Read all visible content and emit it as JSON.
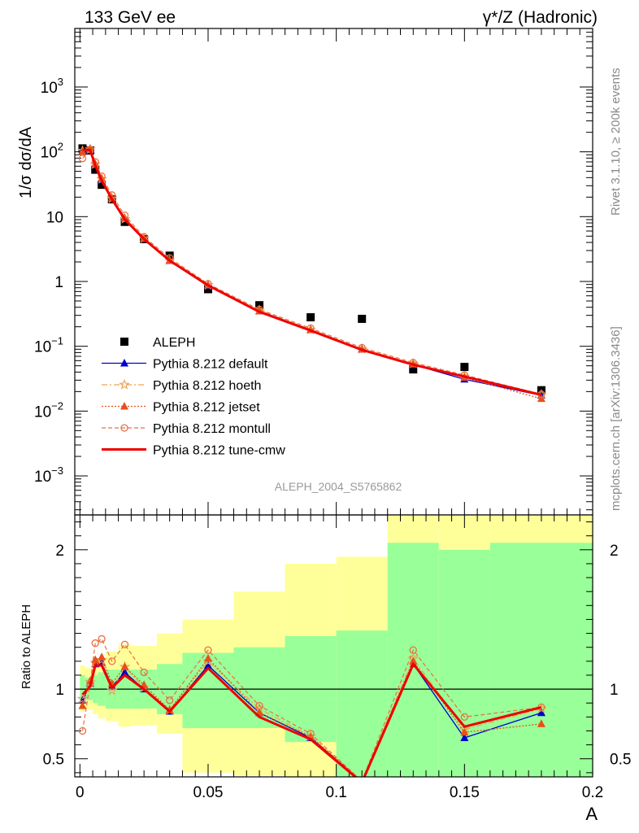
{
  "header": {
    "left": "133 GeV ee",
    "right": "γ*/Z (Hadronic)"
  },
  "side_text": {
    "top": "Rivet 3.1.10, ≥ 200k events",
    "bottom": "mcplots.cern.ch [arXiv:1306.3436]"
  },
  "reference": "ALEPH_2004_S5765862",
  "chart_data": [
    {
      "type": "line",
      "panel": "main",
      "ylabel": "1/σ  dσ/dA",
      "xlim": [
        -0.002,
        0.2
      ],
      "ylim": [
        0.00025,
        8000
      ],
      "yscale": "log",
      "x_ticks": [
        0,
        0.05,
        0.1,
        0.15,
        0.2
      ],
      "y_ticks": [
        {
          "v": 0.001,
          "label": "10^-3"
        },
        {
          "v": 0.01,
          "label": "10^-2"
        },
        {
          "v": 0.1,
          "label": "10^-1"
        },
        {
          "v": 1,
          "label": "1"
        },
        {
          "v": 10,
          "label": "10"
        },
        {
          "v": 100,
          "label": "10^2"
        },
        {
          "v": 1000,
          "label": "10^3"
        }
      ],
      "legend_position": "bottom-left",
      "x": [
        0.001,
        0.004,
        0.006,
        0.0085,
        0.0125,
        0.0175,
        0.025,
        0.035,
        0.05,
        0.07,
        0.09,
        0.11,
        0.13,
        0.15,
        0.18
      ],
      "series": [
        {
          "name": "ALEPH",
          "style": "data",
          "color": "#000000",
          "values": [
            113,
            105,
            53,
            31,
            18.5,
            8.3,
            4.5,
            2.5,
            0.76,
            0.43,
            0.28,
            0.265,
            0.044,
            0.048,
            0.021
          ]
        },
        {
          "name": "Pythia 8.212 default",
          "style": "default",
          "color": "#0000cc",
          "values": [
            103,
            108,
            63,
            37,
            19.2,
            9.3,
            4.55,
            2.1,
            0.86,
            0.35,
            0.18,
            0.09,
            0.052,
            0.031,
            0.0175
          ]
        },
        {
          "name": "Pythia 8.212 hoeth",
          "style": "hoeth",
          "color": "#f0a050",
          "values": [
            104,
            110,
            64,
            38,
            19.0,
            9.2,
            4.6,
            2.1,
            0.88,
            0.36,
            0.18,
            0.091,
            0.054,
            0.034,
            0.018
          ]
        },
        {
          "name": "Pythia 8.212 jetset",
          "style": "jetset",
          "color": "#e8501a",
          "values": [
            99,
            111,
            65,
            39,
            19.5,
            9.6,
            4.6,
            2.12,
            0.88,
            0.35,
            0.18,
            0.09,
            0.053,
            0.033,
            0.0155
          ]
        },
        {
          "name": "Pythia 8.212 montull",
          "style": "montull",
          "color": "#e87040",
          "values": [
            79,
            109,
            70,
            42,
            21.5,
            10.5,
            4.9,
            2.3,
            0.92,
            0.37,
            0.19,
            0.095,
            0.056,
            0.036,
            0.0182
          ]
        },
        {
          "name": "Pythia 8.212 tune-cmw",
          "style": "cmw",
          "color": "#ee0000",
          "values": [
            108,
            106,
            62,
            36,
            18.6,
            9.1,
            4.5,
            2.1,
            0.87,
            0.34,
            0.175,
            0.088,
            0.052,
            0.034,
            0.0178
          ]
        }
      ]
    },
    {
      "type": "line",
      "panel": "ratio",
      "ylabel": "Ratio to ALEPH",
      "xlabel": "A",
      "xlim": [
        -0.002,
        0.2
      ],
      "ylim": [
        0.37,
        2.25
      ],
      "y_ticks": [
        0.5,
        1,
        2
      ],
      "x_ticks": [
        0,
        0.05,
        0.1,
        0.15,
        0.2
      ],
      "bands": [
        {
          "x0": 0.0,
          "x1": 0.002,
          "green": [
            0.9,
            1.1
          ],
          "yellow": [
            0.84,
            1.17
          ]
        },
        {
          "x0": 0.002,
          "x1": 0.005,
          "green": [
            0.92,
            1.08
          ],
          "yellow": [
            0.85,
            1.15
          ]
        },
        {
          "x0": 0.005,
          "x1": 0.007,
          "green": [
            0.9,
            1.1
          ],
          "yellow": [
            0.82,
            1.18
          ]
        },
        {
          "x0": 0.007,
          "x1": 0.01,
          "green": [
            0.88,
            1.12
          ],
          "yellow": [
            0.79,
            1.22
          ]
        },
        {
          "x0": 0.01,
          "x1": 0.015,
          "green": [
            0.86,
            1.14
          ],
          "yellow": [
            0.77,
            1.27
          ]
        },
        {
          "x0": 0.015,
          "x1": 0.02,
          "green": [
            0.86,
            1.14
          ],
          "yellow": [
            0.73,
            1.32
          ]
        },
        {
          "x0": 0.02,
          "x1": 0.03,
          "green": [
            0.86,
            1.14
          ],
          "yellow": [
            0.74,
            1.31
          ]
        },
        {
          "x0": 0.03,
          "x1": 0.04,
          "green": [
            0.82,
            1.18
          ],
          "yellow": [
            0.68,
            1.4
          ]
        },
        {
          "x0": 0.04,
          "x1": 0.06,
          "green": [
            0.72,
            1.26
          ],
          "yellow": [
            0.4,
            1.5
          ]
        },
        {
          "x0": 0.06,
          "x1": 0.08,
          "green": [
            0.72,
            1.3
          ],
          "yellow": [
            0.38,
            1.7
          ]
        },
        {
          "x0": 0.08,
          "x1": 0.1,
          "green": [
            0.62,
            1.38
          ],
          "yellow": [
            0.37,
            1.9
          ]
        },
        {
          "x0": 0.1,
          "x1": 0.12,
          "green": [
            0.37,
            1.42
          ],
          "yellow": [
            0.37,
            1.95
          ]
        },
        {
          "x0": 0.12,
          "x1": 0.14,
          "green": [
            0.37,
            2.05
          ],
          "yellow": [
            0.37,
            2.25
          ]
        },
        {
          "x0": 0.14,
          "x1": 0.16,
          "green": [
            0.37,
            2.0
          ],
          "yellow": [
            0.37,
            2.25
          ]
        },
        {
          "x0": 0.16,
          "x1": 0.2,
          "green": [
            0.37,
            2.05
          ],
          "yellow": [
            0.37,
            2.25
          ]
        }
      ],
      "x": [
        0.001,
        0.004,
        0.006,
        0.0085,
        0.0125,
        0.0175,
        0.025,
        0.035,
        0.05,
        0.07,
        0.09,
        0.11,
        0.13,
        0.15,
        0.18
      ],
      "series": [
        {
          "name": "Pythia 8.212 default",
          "style": "default",
          "color": "#0000cc",
          "values": [
            0.92,
            1.04,
            1.18,
            1.19,
            1.02,
            1.12,
            1.0,
            0.84,
            1.17,
            0.83,
            0.65,
            0.34,
            1.18,
            0.65,
            0.83
          ]
        },
        {
          "name": "Pythia 8.212 hoeth",
          "style": "hoeth",
          "color": "#f0a050",
          "values": [
            0.93,
            1.05,
            1.19,
            1.21,
            0.99,
            1.16,
            1.01,
            0.85,
            1.2,
            0.86,
            0.66,
            0.34,
            1.22,
            0.71,
            0.86
          ]
        },
        {
          "name": "Pythia 8.212 jetset",
          "style": "jetset",
          "color": "#e8501a",
          "values": [
            0.88,
            1.06,
            1.21,
            1.23,
            1.04,
            1.16,
            1.03,
            0.85,
            1.22,
            0.83,
            0.66,
            0.34,
            1.2,
            0.69,
            0.75
          ]
        },
        {
          "name": "Pythia 8.212 montull",
          "style": "montull",
          "color": "#e87040",
          "values": [
            0.7,
            1.04,
            1.33,
            1.36,
            1.2,
            1.32,
            1.12,
            0.92,
            1.28,
            0.88,
            0.68,
            0.34,
            1.28,
            0.8,
            0.87
          ]
        },
        {
          "name": "Pythia 8.212 tune-cmw",
          "style": "cmw",
          "color": "#ee0000",
          "values": [
            0.96,
            1.02,
            1.17,
            1.17,
            1.01,
            1.1,
            1.0,
            0.84,
            1.15,
            0.8,
            0.64,
            0.33,
            1.18,
            0.73,
            0.87
          ]
        }
      ]
    }
  ]
}
